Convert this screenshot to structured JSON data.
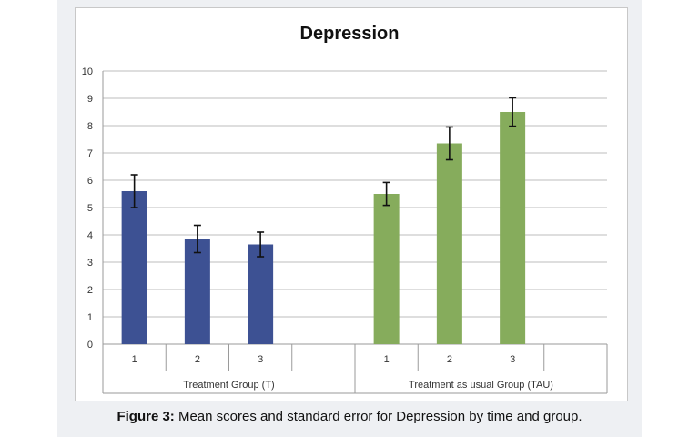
{
  "chart_data": {
    "type": "bar",
    "title": "Depression",
    "xlabel": "",
    "ylabel": "",
    "ylim": [
      0,
      10
    ],
    "yticks": [
      0,
      1,
      2,
      3,
      4,
      5,
      6,
      7,
      8,
      9,
      10
    ],
    "grid": true,
    "legend": "none",
    "groups": [
      {
        "label": "Treatment Group (T)",
        "categories": [
          "1",
          "2",
          "3"
        ],
        "values": [
          5.6,
          3.85,
          3.65
        ],
        "errors": [
          0.6,
          0.5,
          0.45
        ],
        "color": "#3d5193"
      },
      {
        "label": "Treatment as usual Group (TAU)",
        "categories": [
          "1",
          "2",
          "3"
        ],
        "values": [
          5.5,
          7.35,
          8.5
        ],
        "errors": [
          0.42,
          0.6,
          0.52
        ],
        "color": "#86ac5c"
      }
    ]
  },
  "caption": {
    "lead": "Figure 3:",
    "text": " Mean scores and standard error for Depression by time and group."
  }
}
